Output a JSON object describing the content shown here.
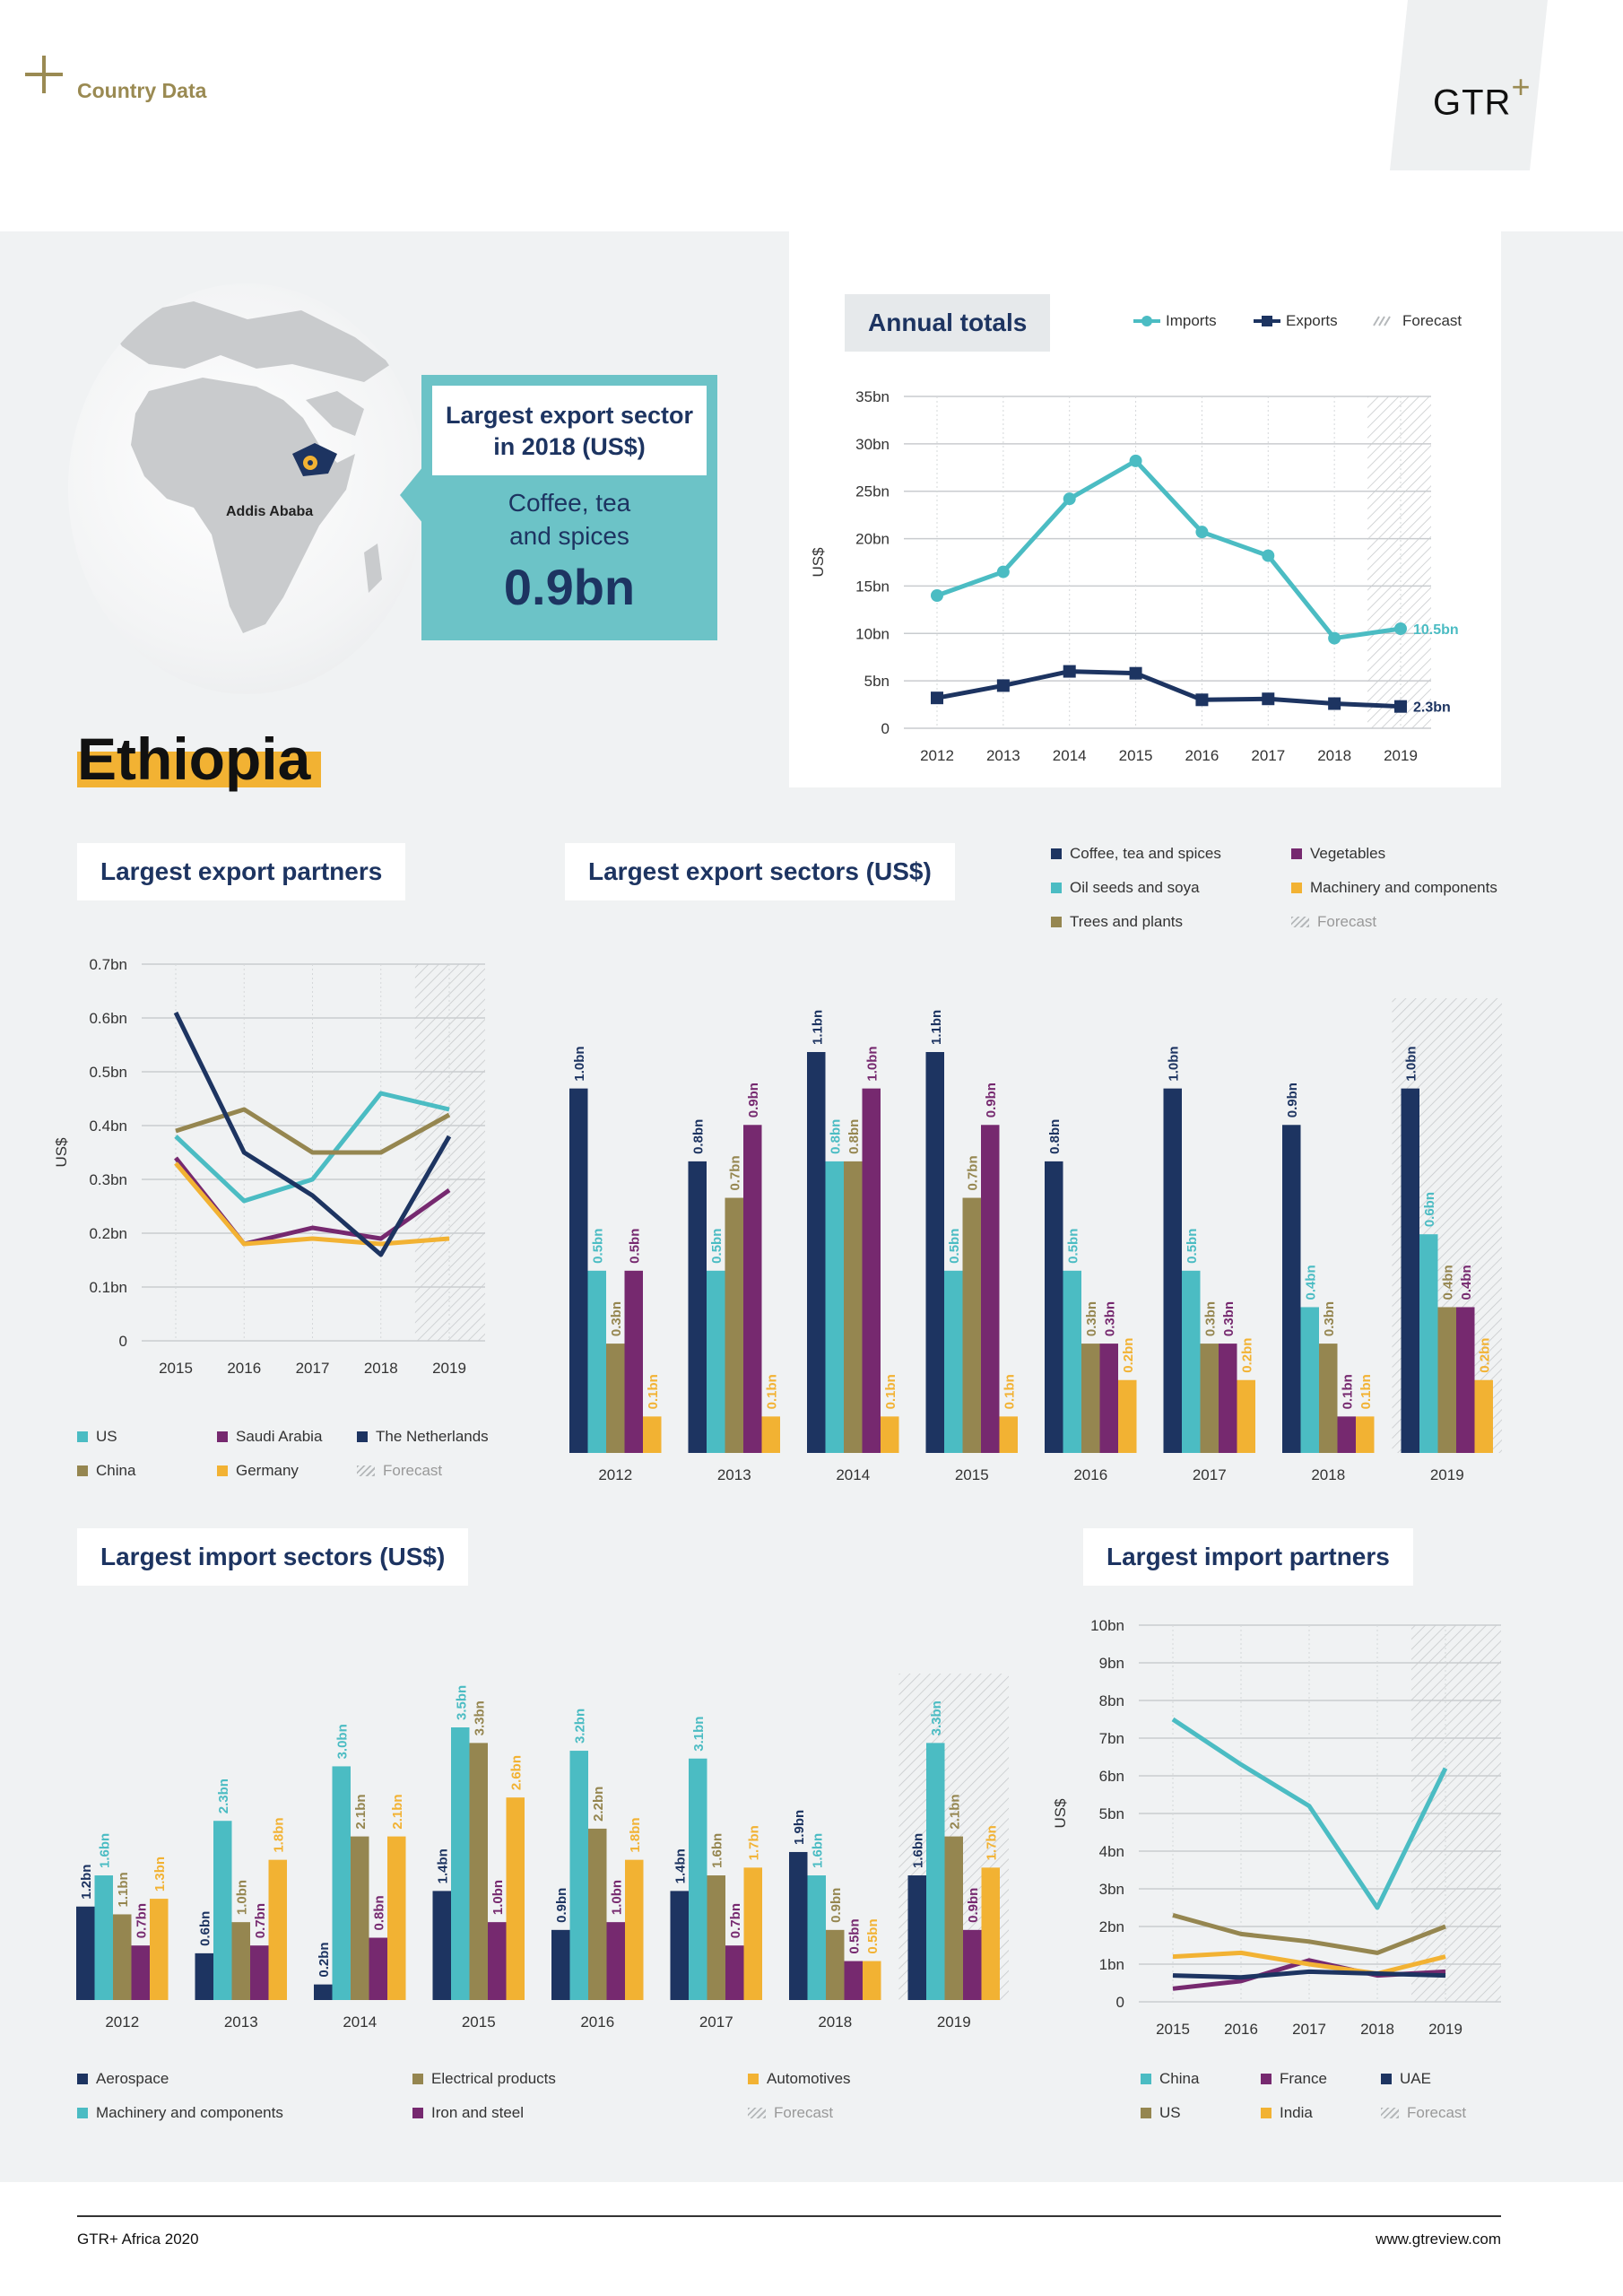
{
  "header": {
    "section": "Country Data",
    "logo": "GTR",
    "logo_plus": "+"
  },
  "country": "Ethiopia",
  "map": {
    "city": "Addis Ababa"
  },
  "callout": {
    "title_line1": "Largest export sector",
    "title_line2": "in 2018 (US$)",
    "sector_line1": "Coffee, tea",
    "sector_line2": "and spices",
    "value": "0.9bn"
  },
  "colors": {
    "navy": "#1d3461",
    "teal": "#4bbcc3",
    "olive": "#958650",
    "purple": "#76296f",
    "yellow": "#f2b233",
    "grey_bg": "#f0f2f3"
  },
  "footer": {
    "left": "GTR+ Africa 2020",
    "right": "www.gtreview.com"
  },
  "chart_data": [
    {
      "id": "annual",
      "type": "line",
      "title": "Annual totals",
      "ylabel": "US$",
      "x": [
        "2012",
        "2013",
        "2014",
        "2015",
        "2016",
        "2017",
        "2018",
        "2019"
      ],
      "yticks": [
        "0",
        "5bn",
        "10bn",
        "15bn",
        "20bn",
        "25bn",
        "30bn",
        "35bn"
      ],
      "ylim": [
        0,
        35
      ],
      "forecast_from": "2019",
      "legend": [
        "Imports",
        "Exports",
        "Forecast"
      ],
      "series": [
        {
          "name": "Imports",
          "color": "#4bbcc3",
          "values": [
            14.0,
            16.5,
            24.2,
            28.2,
            20.7,
            18.2,
            9.5,
            10.5
          ],
          "end_label": "10.5bn"
        },
        {
          "name": "Exports",
          "color": "#1d3461",
          "values": [
            3.2,
            4.5,
            6.0,
            5.8,
            3.0,
            3.1,
            2.6,
            2.3
          ],
          "end_label": "2.3bn"
        }
      ]
    },
    {
      "id": "exp_partners",
      "type": "line",
      "title": "Largest export partners",
      "ylabel": "US$",
      "x": [
        "2015",
        "2016",
        "2017",
        "2018",
        "2019"
      ],
      "yticks": [
        "0",
        "0.1bn",
        "0.2bn",
        "0.3bn",
        "0.4bn",
        "0.5bn",
        "0.6bn",
        "0.7bn"
      ],
      "ylim": [
        0,
        0.7
      ],
      "forecast_from": "2019",
      "series": [
        {
          "name": "US",
          "color": "#4bbcc3",
          "values": [
            0.38,
            0.26,
            0.3,
            0.46,
            0.43
          ]
        },
        {
          "name": "China",
          "color": "#958650",
          "values": [
            0.39,
            0.43,
            0.35,
            0.35,
            0.42
          ]
        },
        {
          "name": "Saudi Arabia",
          "color": "#76296f",
          "values": [
            0.34,
            0.18,
            0.21,
            0.19,
            0.28
          ]
        },
        {
          "name": "Germany",
          "color": "#f2b233",
          "values": [
            0.33,
            0.18,
            0.19,
            0.18,
            0.19
          ]
        },
        {
          "name": "The Netherlands",
          "color": "#1d3461",
          "values": [
            0.61,
            0.35,
            0.27,
            0.16,
            0.38
          ]
        }
      ],
      "legend_order": [
        "US",
        "Saudi Arabia",
        "The Netherlands",
        "China",
        "Germany",
        "Forecast"
      ]
    },
    {
      "id": "exp_sectors",
      "type": "bar",
      "title": "Largest export sectors (US$)",
      "categories": [
        "2012",
        "2013",
        "2014",
        "2015",
        "2016",
        "2017",
        "2018",
        "2019"
      ],
      "ylim": [
        0,
        1.1
      ],
      "forecast_from": "2019",
      "series": [
        {
          "name": "Coffee, tea and spices",
          "color": "#1d3461",
          "values": [
            1.0,
            0.8,
            1.1,
            1.1,
            0.8,
            1.0,
            0.9,
            1.0
          ],
          "labels": [
            "1.0bn",
            "0.8bn",
            "1.1bn",
            "1.1bn",
            "0.8bn",
            "1.0bn",
            "0.9bn",
            "1.0bn"
          ]
        },
        {
          "name": "Oil seeds and soya",
          "color": "#4bbcc3",
          "values": [
            0.5,
            0.5,
            0.8,
            0.5,
            0.5,
            0.5,
            0.4,
            0.6
          ],
          "labels": [
            "0.5bn",
            "0.5bn",
            "0.8bn",
            "0.5bn",
            "0.5bn",
            "0.5bn",
            "0.4bn",
            "0.6bn"
          ]
        },
        {
          "name": "Trees and plants",
          "color": "#958650",
          "values": [
            0.3,
            0.7,
            0.8,
            0.7,
            0.3,
            0.3,
            0.3,
            0.4
          ],
          "labels": [
            "0.3bn",
            "0.7bn",
            "0.8bn",
            "0.7bn",
            "0.3bn",
            "0.3bn",
            "0.3bn",
            "0.4bn"
          ]
        },
        {
          "name": "Vegetables",
          "color": "#76296f",
          "values": [
            0.5,
            0.9,
            1.0,
            0.9,
            0.3,
            0.3,
            0.1,
            0.4
          ],
          "labels": [
            "0.5bn",
            "0.9bn",
            "1.0bn",
            "0.9bn",
            "0.3bn",
            "0.3bn",
            "0.1bn",
            "0.4bn"
          ]
        },
        {
          "name": "Machinery and components",
          "color": "#f2b233",
          "values": [
            0.1,
            0.1,
            0.1,
            0.1,
            0.2,
            0.2,
            0.1,
            0.2
          ],
          "labels": [
            "0.1bn",
            "0.1bn",
            "0.1bn",
            "0.1bn",
            "0.2bn",
            "0.2bn",
            "0.1bn",
            "0.2bn"
          ]
        }
      ],
      "legend_order": [
        "Coffee, tea and spices",
        "Vegetables",
        "Oil seeds and soya",
        "Machinery and components",
        "Trees and plants",
        "Forecast"
      ]
    },
    {
      "id": "imp_sectors",
      "type": "bar",
      "title": "Largest import sectors (US$)",
      "categories": [
        "2012",
        "2013",
        "2014",
        "2015",
        "2016",
        "2017",
        "2018",
        "2019"
      ],
      "ylim": [
        0,
        3.5
      ],
      "forecast_from": "2019",
      "series": [
        {
          "name": "Aerospace",
          "color": "#1d3461",
          "values": [
            1.2,
            0.6,
            0.2,
            1.4,
            0.9,
            1.4,
            1.9,
            1.6
          ],
          "labels": [
            "1.2bn",
            "0.6bn",
            "0.2bn",
            "1.4bn",
            "0.9bn",
            "1.4bn",
            "1.9bn",
            "1.6bn"
          ]
        },
        {
          "name": "Machinery and components",
          "color": "#4bbcc3",
          "values": [
            1.6,
            2.3,
            3.0,
            3.5,
            3.2,
            3.1,
            1.6,
            3.3
          ],
          "labels": [
            "1.6bn",
            "2.3bn",
            "3.0bn",
            "3.5bn",
            "3.2bn",
            "3.1bn",
            "1.6bn",
            "3.3bn"
          ]
        },
        {
          "name": "Electrical products",
          "color": "#958650",
          "values": [
            1.1,
            1.0,
            2.1,
            3.3,
            2.2,
            1.6,
            0.9,
            2.1
          ],
          "labels": [
            "1.1bn",
            "1.0bn",
            "2.1bn",
            "3.3bn",
            "2.2bn",
            "1.6bn",
            "0.9bn",
            "2.1bn"
          ]
        },
        {
          "name": "Iron and steel",
          "color": "#76296f",
          "values": [
            0.7,
            0.7,
            0.8,
            1.0,
            1.0,
            0.7,
            0.5,
            0.9
          ],
          "labels": [
            "0.7bn",
            "0.7bn",
            "0.8bn",
            "1.0bn",
            "1.0bn",
            "0.7bn",
            "0.5bn",
            "0.9bn"
          ]
        },
        {
          "name": "Automotives",
          "color": "#f2b233",
          "values": [
            1.3,
            1.8,
            2.1,
            2.6,
            1.8,
            1.7,
            0.5,
            1.7
          ],
          "labels": [
            "1.3bn",
            "1.8bn",
            "2.1bn",
            "2.6bn",
            "1.8bn",
            "1.7bn",
            "0.5bn",
            "1.7bn"
          ]
        }
      ],
      "legend_order": [
        "Aerospace",
        "Electrical products",
        "Automotives",
        "Machinery and components",
        "Iron and steel",
        "Forecast"
      ]
    },
    {
      "id": "imp_partners",
      "type": "line",
      "title": "Largest import partners",
      "ylabel": "US$",
      "x": [
        "2015",
        "2016",
        "2017",
        "2018",
        "2019"
      ],
      "yticks": [
        "0",
        "1bn",
        "2bn",
        "3bn",
        "4bn",
        "5bn",
        "6bn",
        "7bn",
        "8bn",
        "9bn",
        "10bn"
      ],
      "ylim": [
        0,
        10
      ],
      "forecast_from": "2019",
      "series": [
        {
          "name": "China",
          "color": "#4bbcc3",
          "values": [
            7.5,
            6.3,
            5.2,
            2.5,
            6.2
          ]
        },
        {
          "name": "US",
          "color": "#958650",
          "values": [
            2.3,
            1.8,
            1.6,
            1.3,
            2.0
          ]
        },
        {
          "name": "France",
          "color": "#76296f",
          "values": [
            0.35,
            0.55,
            1.1,
            0.7,
            0.8
          ]
        },
        {
          "name": "India",
          "color": "#f2b233",
          "values": [
            1.2,
            1.3,
            1.0,
            0.75,
            1.2
          ]
        },
        {
          "name": "UAE",
          "color": "#1d3461",
          "values": [
            0.7,
            0.65,
            0.8,
            0.75,
            0.7
          ]
        }
      ],
      "legend_order": [
        "China",
        "France",
        "UAE",
        "US",
        "India",
        "Forecast"
      ]
    }
  ],
  "forecast_label": "Forecast"
}
